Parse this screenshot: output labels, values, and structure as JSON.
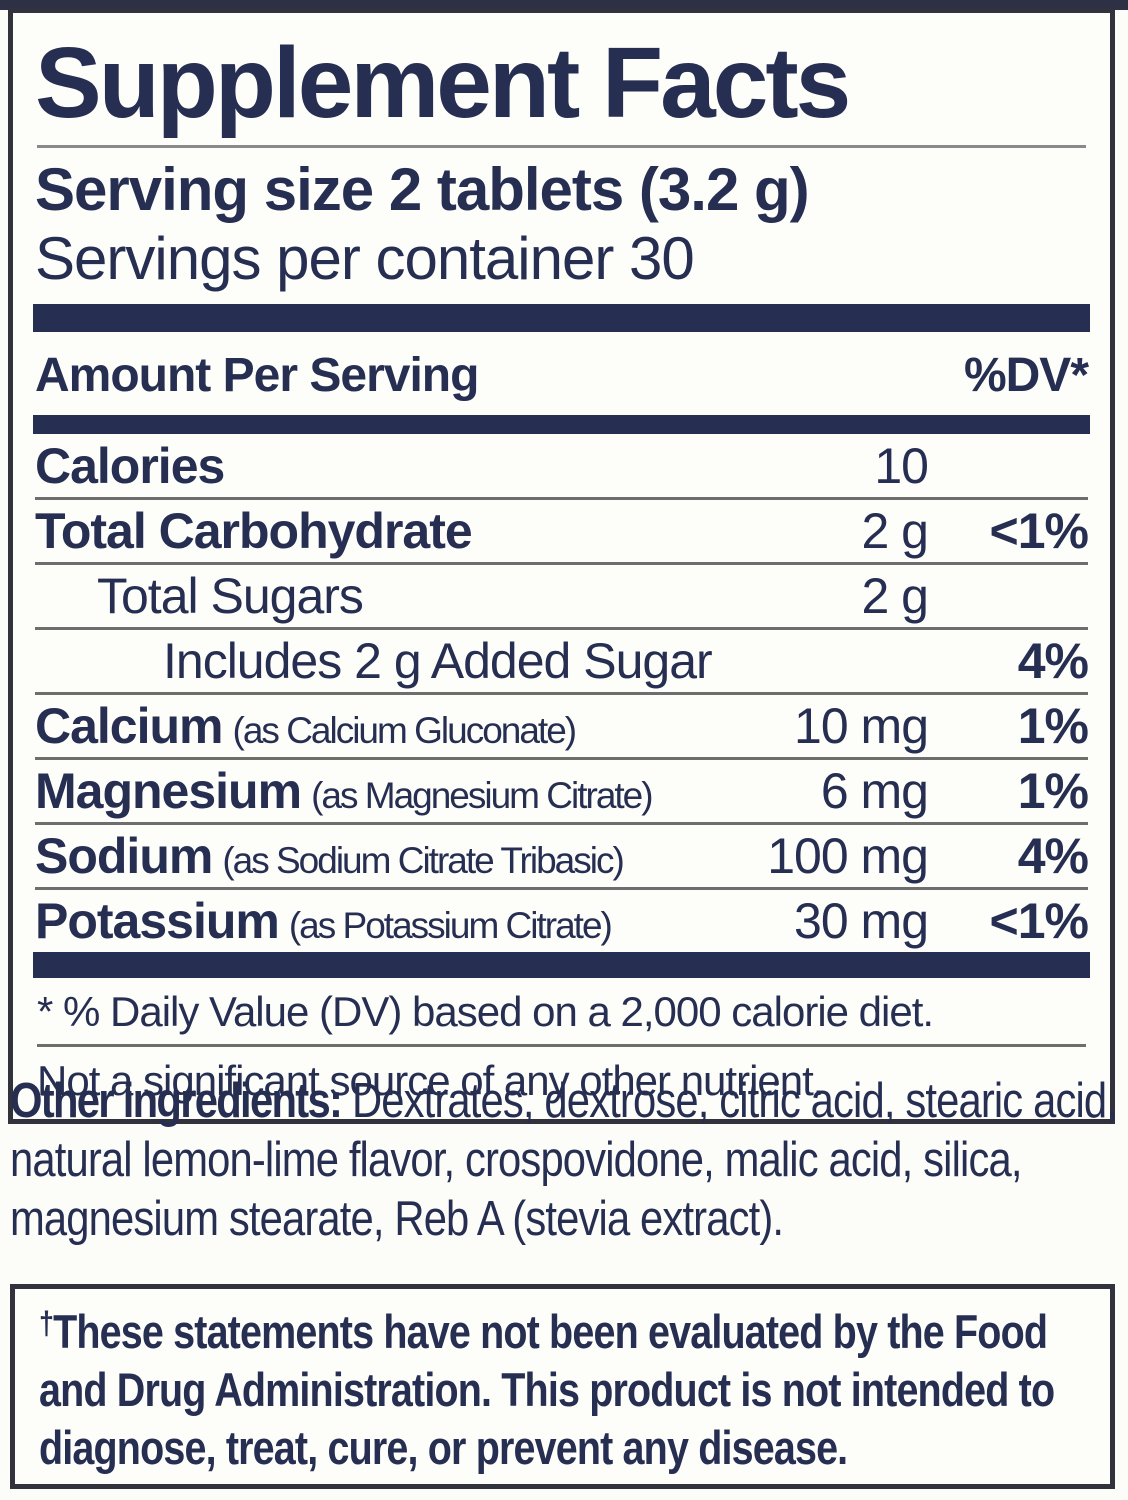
{
  "panel": {
    "title": "Supplement Facts",
    "serving_size": "Serving size 2 tablets (3.2 g)",
    "servings_per_container": "Servings per container 30",
    "header": {
      "amount_label": "Amount Per Serving",
      "dv_label": "%DV*"
    },
    "rows": [
      {
        "label": "Calories",
        "note": "",
        "amount": "10",
        "dv": ""
      },
      {
        "label": "Total Carbohydrate",
        "note": "",
        "amount": "2 g",
        "dv": "<1%"
      },
      {
        "label": "Total Sugars",
        "note": "",
        "amount": "2 g",
        "dv": ""
      },
      {
        "label": "Includes 2 g Added Sugar",
        "note": "",
        "amount": "",
        "dv": "4%"
      },
      {
        "label": "Calcium",
        "note": "(as Calcium Gluconate)",
        "amount": "10 mg",
        "dv": "1%"
      },
      {
        "label": "Magnesium",
        "note": "(as Magnesium Citrate)",
        "amount": "6 mg",
        "dv": "1%"
      },
      {
        "label": "Sodium",
        "note": "(as Sodium Citrate Tribasic)",
        "amount": "100 mg",
        "dv": "4%"
      },
      {
        "label": "Potassium",
        "note": "(as Potassium Citrate)",
        "amount": "30 mg",
        "dv": "<1%"
      }
    ],
    "footnotes": {
      "dv_note": "* % Daily Value (DV) based on a 2,000 calorie diet.",
      "nutrient_note": "Not a significant source of any other nutrient."
    }
  },
  "other_ingredients": {
    "lead": "Other ingredients:",
    "text": "Dextrates, dextrose, citric acid, stearic acid, natural lemon-lime flavor, crospovidone, malic acid, silica, magnesium stearate, Reb A (stevia extract)."
  },
  "disclaimer": {
    "dagger": "†",
    "text": "These statements have not been evaluated by the Food and Drug Administration. This product is not intended to diagnose, treat, cure, or prevent any disease."
  },
  "colors": {
    "navy_text": "#262e52",
    "divider_bar": "#262e52",
    "box_border": "#32323c",
    "row_rule": "#6e6e6e",
    "background": "#fcfcf9"
  }
}
